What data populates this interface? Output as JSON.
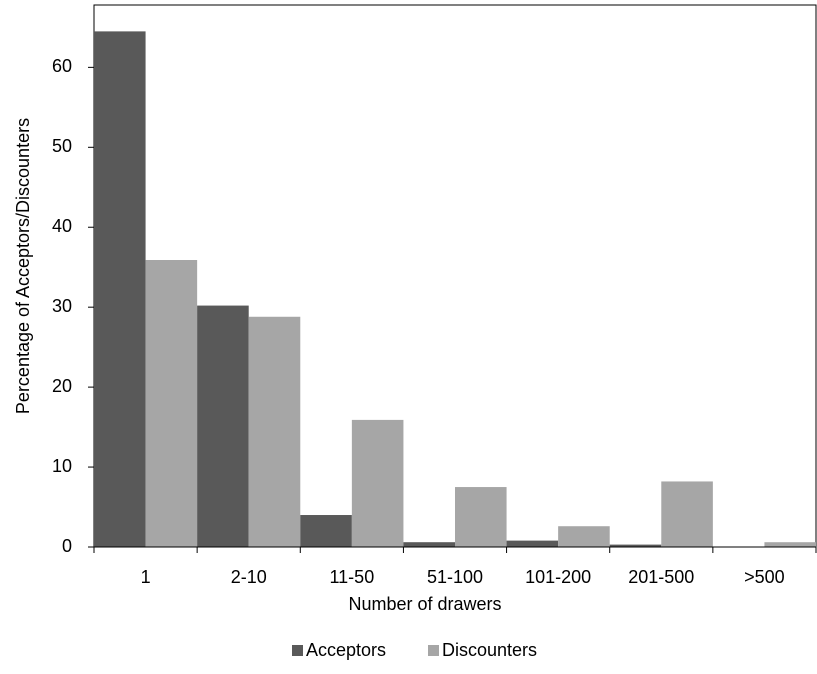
{
  "chart_data": {
    "type": "bar",
    "x_label": "Number of drawers",
    "y_label": "Percentage of Acceptors/Discounters",
    "categories": [
      "1",
      "2-10",
      "11-50",
      "51-100",
      "101-200",
      "201-500",
      ">500"
    ],
    "series": [
      {
        "name": "Acceptors",
        "color": "#595959",
        "values": [
          64.5,
          30.2,
          4,
          0.6,
          0.8,
          0.3,
          0
        ]
      },
      {
        "name": "Discounters",
        "color": "#a6a6a6",
        "values": [
          35.9,
          28.8,
          15.9,
          7.5,
          2.6,
          8.2,
          0.6
        ]
      }
    ],
    "ylim": [
      0,
      67.8
    ],
    "yticks": [
      0,
      10,
      20,
      30,
      40,
      50,
      60
    ],
    "grid": false,
    "legend": "bottom"
  }
}
